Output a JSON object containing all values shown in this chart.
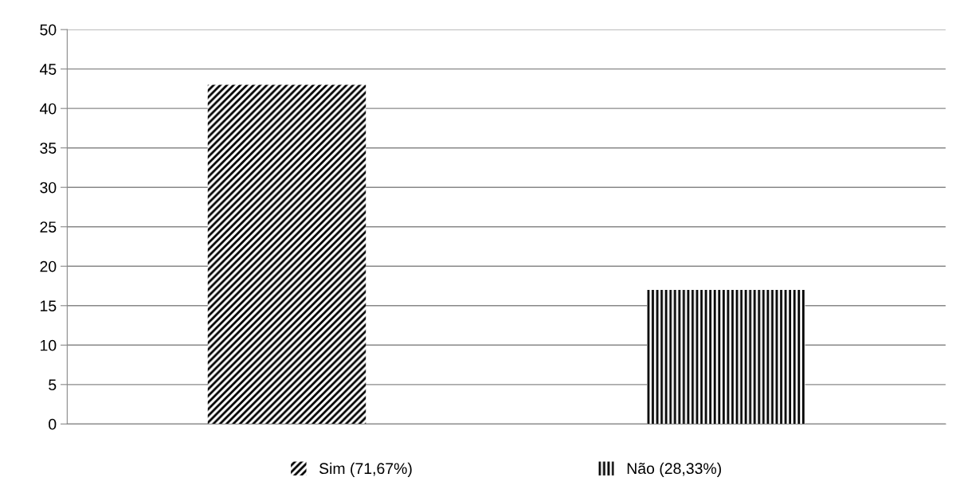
{
  "chart_data": {
    "type": "bar",
    "categories": [
      null,
      null
    ],
    "series": [
      {
        "name": "Sim (71,67%)",
        "color": "#000000",
        "values": [
          43,
          null
        ]
      },
      {
        "name": "Não (28,33%)",
        "color": "#000000",
        "values": [
          null,
          17
        ]
      }
    ],
    "ylim": [
      0,
      50
    ],
    "yticks": [
      0,
      5,
      10,
      15,
      20,
      25,
      30,
      35,
      40,
      45,
      50
    ],
    "grid": "y",
    "legend": "bottom"
  }
}
